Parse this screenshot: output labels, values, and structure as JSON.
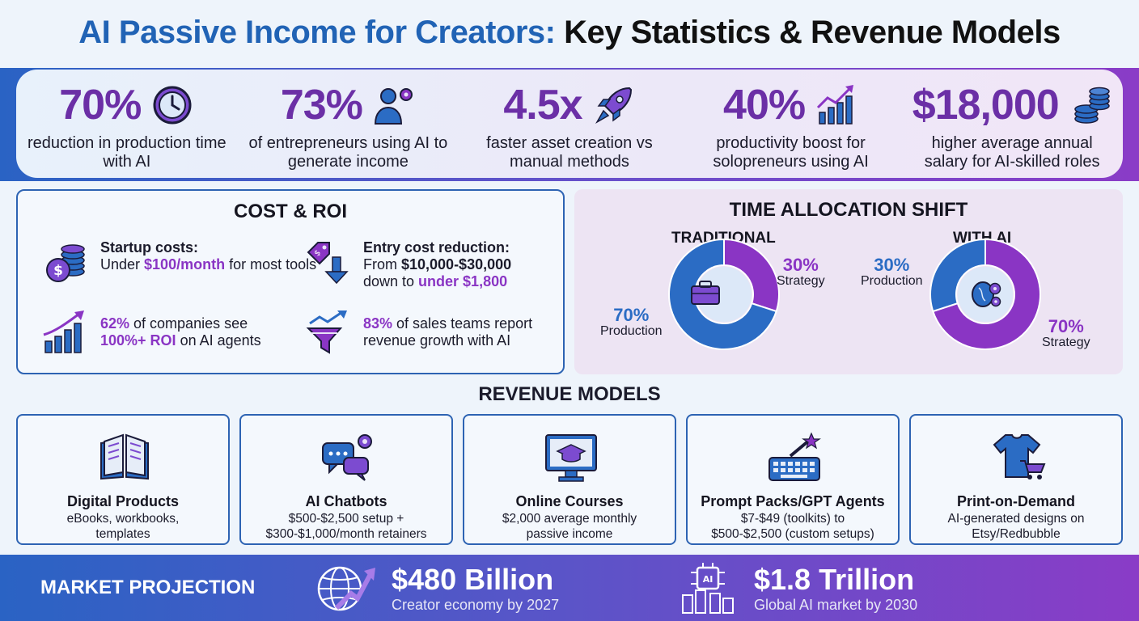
{
  "title": {
    "part1": "AI Passive Income for Creators:",
    "part2": "Key Statistics & Revenue Models"
  },
  "stats": [
    {
      "value": "70%",
      "label": "reduction in production time with AI",
      "icon": "clock-icon"
    },
    {
      "value": "73%",
      "label": "of entrepreneurs using AI to generate income",
      "icon": "person-gear-icon"
    },
    {
      "value": "4.5x",
      "label": "faster asset creation vs manual methods",
      "icon": "rocket-icon"
    },
    {
      "value": "40%",
      "label": "productivity boost for solopreneurs using AI",
      "icon": "growth-chart-icon"
    },
    {
      "value": "$18,000",
      "label": "higher average annual salary for AI-skilled roles",
      "icon": "coin-stack-icon"
    }
  ],
  "cost_roi": {
    "title": "COST & ROI",
    "startup": {
      "heading": "Startup costs:",
      "pre": "Under ",
      "highlight": "$100/month",
      "post": " for most tools"
    },
    "entry": {
      "heading": "Entry cost reduction:",
      "line1_pre": "From ",
      "line1_bold": "$10,000-$30,000",
      "line2_pre": "down to ",
      "line2_highlight": "under $1,800"
    },
    "roi": {
      "highlight1": "62%",
      "text1": " of companies see",
      "highlight2": "100%+ ROI",
      "text2": " on AI agents"
    },
    "sales": {
      "highlight": "83%",
      "text1": " of sales teams report",
      "text2": "revenue growth with AI"
    }
  },
  "time_allocation": {
    "title": "TIME ALLOCATION SHIFT",
    "traditional": {
      "label": "TRADITIONAL",
      "production_pct": "70%",
      "strategy_pct": "30%",
      "production_label": "Production",
      "strategy_label": "Strategy"
    },
    "with_ai": {
      "label": "WITH AI",
      "production_pct": "30%",
      "strategy_pct": "70%",
      "production_label": "Production",
      "strategy_label": "Strategy"
    }
  },
  "chart_data": [
    {
      "type": "pie",
      "title": "TRADITIONAL",
      "categories": [
        "Production",
        "Strategy"
      ],
      "values": [
        70,
        30
      ]
    },
    {
      "type": "pie",
      "title": "WITH AI",
      "categories": [
        "Production",
        "Strategy"
      ],
      "values": [
        30,
        70
      ]
    }
  ],
  "revenue_models": {
    "title": "REVENUE MODELS",
    "items": [
      {
        "name": "Digital Products",
        "desc1": "eBooks, workbooks,",
        "desc2": "templates",
        "icon": "book-icon"
      },
      {
        "name": "AI Chatbots",
        "desc1": "$500-$2,500 setup +",
        "desc2": "$300-$1,000/month retainers",
        "icon": "chat-gear-icon"
      },
      {
        "name": "Online Courses",
        "desc1": "$2,000 average monthly",
        "desc2": "passive income",
        "icon": "monitor-graduation-icon"
      },
      {
        "name": "Prompt Packs/GPT Agents",
        "desc1": "$7-$49 (toolkits) to",
        "desc2": "$500-$2,500 (custom setups)",
        "icon": "keyboard-wand-icon"
      },
      {
        "name": "Print-on-Demand",
        "desc1": "AI-generated designs on",
        "desc2": "Etsy/Redbubble",
        "icon": "tshirt-cart-icon"
      }
    ]
  },
  "market": {
    "label": "MARKET PROJECTION",
    "creator": {
      "value": "$480 Billion",
      "sub": "Creator economy by 2027",
      "icon": "globe-growth-icon"
    },
    "ai": {
      "value": "$1.8 Trillion",
      "sub": "Global AI market by 2030",
      "icon": "ai-chip-icon"
    }
  },
  "colors": {
    "blue": "#2b6cc4",
    "purple": "#8a35c4",
    "dark_purple": "#6b2fa6",
    "border_blue": "#2d63b3"
  }
}
